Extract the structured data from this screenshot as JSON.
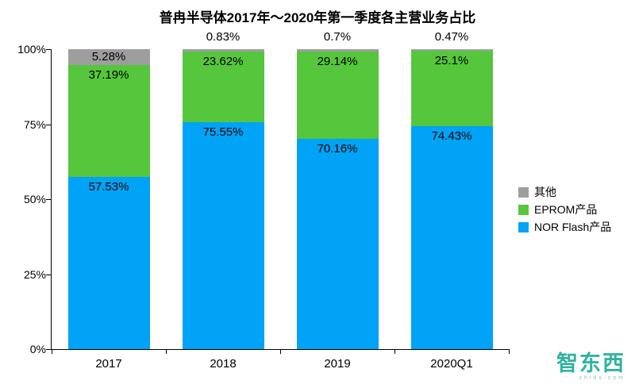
{
  "chart_data": {
    "type": "bar",
    "stacked": true,
    "title": "普冉半导体2017年～2020年第一季度各主营业务占比",
    "categories": [
      "2017",
      "2018",
      "2019",
      "2020Q1"
    ],
    "series": [
      {
        "name": "NOR Flash产品",
        "color": "#00A3F5",
        "values": [
          57.53,
          75.55,
          70.16,
          74.43
        ],
        "labels": [
          "57.53%",
          "75.55%",
          "70.16%",
          "74.43%"
        ]
      },
      {
        "name": "EPROM产品",
        "color": "#56C63C",
        "values": [
          37.19,
          23.62,
          29.14,
          25.1
        ],
        "labels": [
          "37.19%",
          "23.62%",
          "29.14%",
          "25.1%"
        ]
      },
      {
        "name": "其他",
        "color": "#9E9E9E",
        "values": [
          5.28,
          0.83,
          0.7,
          0.47
        ],
        "labels": [
          "5.28%",
          "0.83%",
          "0.7%",
          "0.47%"
        ]
      }
    ],
    "ylim": [
      0,
      100
    ],
    "yticks": [
      {
        "value": 0,
        "label": "0%"
      },
      {
        "value": 25,
        "label": "25%"
      },
      {
        "value": 50,
        "label": "50%"
      },
      {
        "value": 75,
        "label": "75%"
      },
      {
        "value": 100,
        "label": "100%"
      }
    ],
    "grid": false,
    "legend_position": "right"
  },
  "legend": {
    "items": [
      {
        "label": "其他",
        "color": "#9E9E9E"
      },
      {
        "label": "EPROM产品",
        "color": "#56C63C"
      },
      {
        "label": "NOR Flash产品",
        "color": "#00A3F5"
      }
    ]
  },
  "watermark": {
    "text": "智东西",
    "subtext": "zhidx.com"
  }
}
